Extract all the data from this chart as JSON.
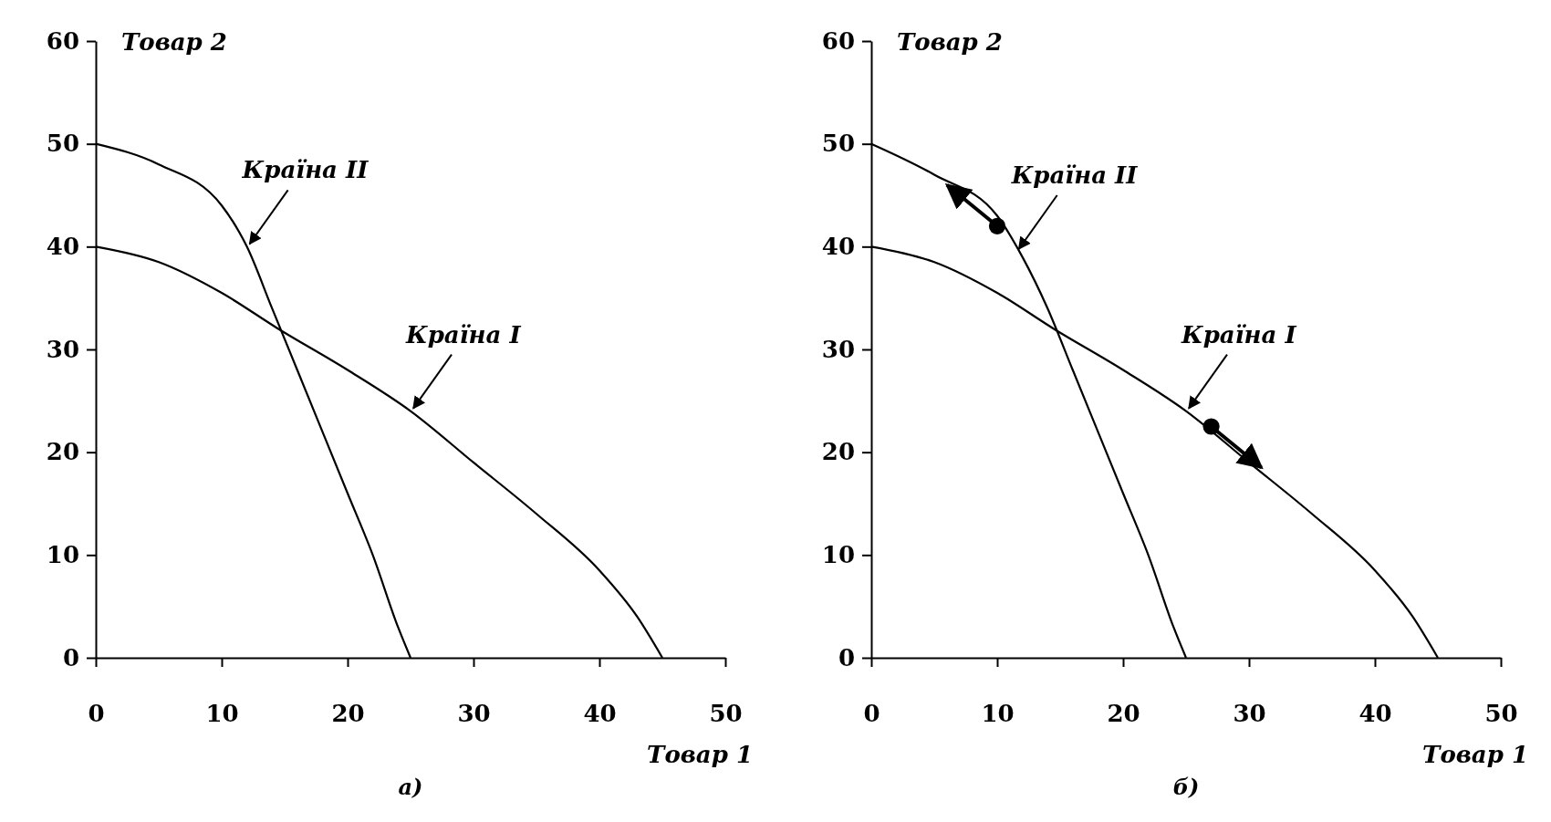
{
  "chart_data": [
    {
      "type": "line",
      "xlabel": "Товар 1",
      "ylabel": "Товар 2",
      "xlim": [
        0,
        50
      ],
      "ylim": [
        0,
        60
      ],
      "xticks": [
        0,
        10,
        20,
        30,
        40,
        50
      ],
      "yticks": [
        0,
        10,
        20,
        30,
        40,
        50,
        60
      ],
      "grid": false,
      "marker": "none",
      "line_style": "solid",
      "series": [
        {
          "color": "#000000",
          "x": [
            0,
            5,
            10,
            12,
            14,
            16,
            18,
            20,
            22,
            24,
            25
          ],
          "values": [
            50,
            48,
            44,
            40,
            34,
            28,
            22,
            16,
            10,
            3,
            0
          ]
        },
        {
          "color": "#000000",
          "x": [
            0,
            5,
            10,
            14.5,
            20,
            25,
            30,
            35,
            40,
            43,
            45
          ],
          "values": [
            40,
            38.5,
            35.5,
            32,
            28,
            24,
            19,
            14,
            8.5,
            4,
            0
          ]
        }
      ],
      "annotations": [
        {
          "text": "Країна II",
          "x": 12,
          "y": 40
        },
        {
          "text": "Країна I",
          "x": 25,
          "y": 24
        },
        "а)"
      ]
    },
    {
      "type": "line",
      "xlabel": "Товар 1",
      "ylabel": "Товар 2",
      "xlim": [
        0,
        50
      ],
      "ylim": [
        0,
        60
      ],
      "xticks": [
        0,
        10,
        20,
        30,
        40,
        50
      ],
      "yticks": [
        0,
        10,
        20,
        30,
        40,
        50,
        60
      ],
      "grid": false,
      "marker": "none",
      "line_style": "solid",
      "series": [
        {
          "color": "#000000",
          "x": [
            0,
            5,
            10,
            12,
            14,
            16,
            18,
            20,
            22,
            24,
            25
          ],
          "values": [
            50,
            47,
            43,
            39,
            34,
            28,
            22,
            16,
            10,
            3,
            0
          ]
        },
        {
          "color": "#000000",
          "x": [
            0,
            5,
            10,
            14.5,
            20,
            25,
            30,
            35,
            40,
            43,
            45
          ],
          "values": [
            40,
            38.5,
            35.5,
            32,
            28,
            24,
            19,
            14,
            8.5,
            4,
            0
          ]
        },
        {
          "type": "scatter",
          "marker": "circle",
          "color": "#000000",
          "x": [
            10,
            27
          ],
          "values": [
            42,
            22.5
          ]
        }
      ],
      "annotations": [
        {
          "text": "Країна II",
          "x": 11.5,
          "y": 39.5
        },
        {
          "text": "Країна I",
          "x": 25,
          "y": 24
        },
        "б)"
      ]
    }
  ]
}
